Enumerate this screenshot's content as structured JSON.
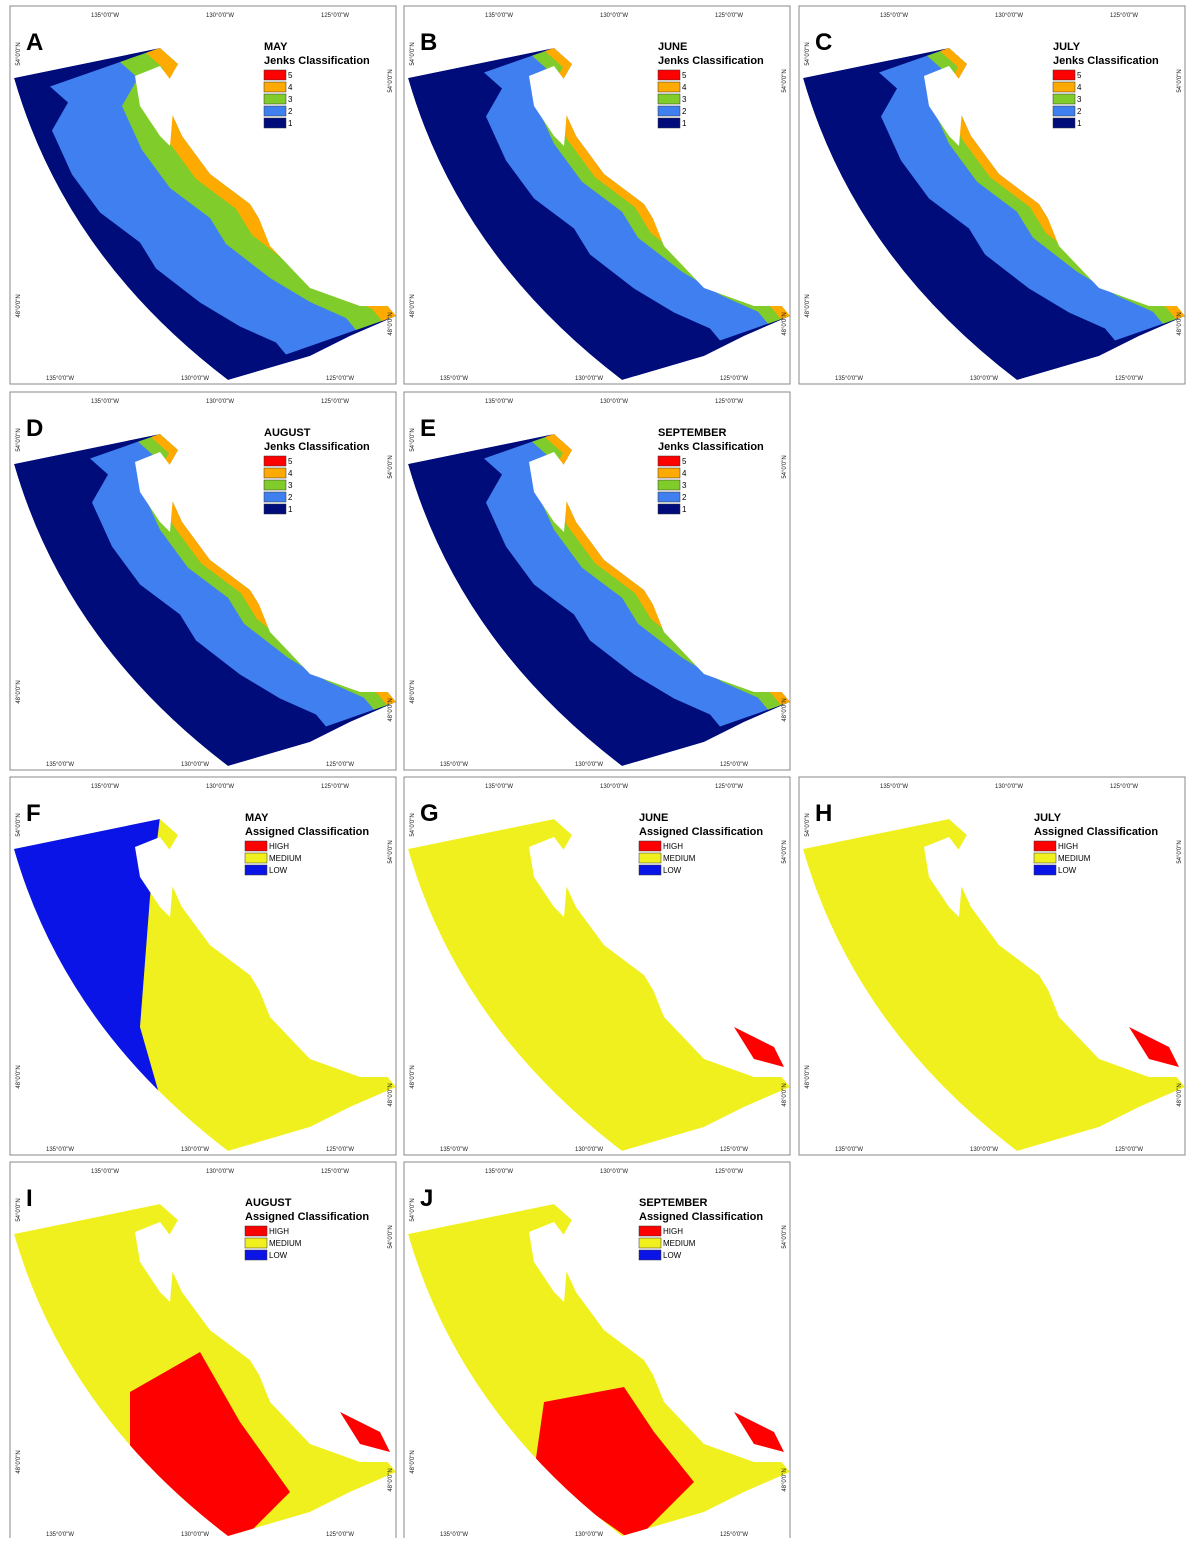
{
  "axis_labels": {
    "lon": [
      "135°0'0\"W",
      "130°0'0\"W",
      "125°0'0\"W"
    ],
    "lat": [
      "54°0'0\"N",
      "48°0'0\"N"
    ]
  },
  "panels": [
    {
      "letter": "A",
      "month": "MAY",
      "classification": "Jenks Classification",
      "legend": [
        {
          "label": "5",
          "color": "#ff0000"
        },
        {
          "label": "4",
          "color": "#ffaa00"
        },
        {
          "label": "3",
          "color": "#7fcc2a"
        },
        {
          "label": "2",
          "color": "#3f7fef"
        },
        {
          "label": "1",
          "color": "#000c7a"
        }
      ]
    },
    {
      "letter": "B",
      "month": "JUNE",
      "classification": "Jenks Classification",
      "legend": [
        {
          "label": "5",
          "color": "#ff0000"
        },
        {
          "label": "4",
          "color": "#ffaa00"
        },
        {
          "label": "3",
          "color": "#7fcc2a"
        },
        {
          "label": "2",
          "color": "#3f7fef"
        },
        {
          "label": "1",
          "color": "#000c7a"
        }
      ]
    },
    {
      "letter": "C",
      "month": "JULY",
      "classification": "Jenks Classification",
      "legend": [
        {
          "label": "5",
          "color": "#ff0000"
        },
        {
          "label": "4",
          "color": "#ffaa00"
        },
        {
          "label": "3",
          "color": "#7fcc2a"
        },
        {
          "label": "2",
          "color": "#3f7fef"
        },
        {
          "label": "1",
          "color": "#000c7a"
        }
      ]
    },
    {
      "letter": "D",
      "month": "AUGUST",
      "classification": "Jenks Classification",
      "legend": [
        {
          "label": "5",
          "color": "#ff0000"
        },
        {
          "label": "4",
          "color": "#ffaa00"
        },
        {
          "label": "3",
          "color": "#7fcc2a"
        },
        {
          "label": "2",
          "color": "#3f7fef"
        },
        {
          "label": "1",
          "color": "#000c7a"
        }
      ]
    },
    {
      "letter": "E",
      "month": "SEPTEMBER",
      "classification": "Jenks Classification",
      "legend": [
        {
          "label": "5",
          "color": "#ff0000"
        },
        {
          "label": "4",
          "color": "#ffaa00"
        },
        {
          "label": "3",
          "color": "#7fcc2a"
        },
        {
          "label": "2",
          "color": "#3f7fef"
        },
        {
          "label": "1",
          "color": "#000c7a"
        }
      ]
    },
    {
      "letter": "F",
      "month": "MAY",
      "classification": "Assigned Classification",
      "legend": [
        {
          "label": "HIGH",
          "color": "#ff0000"
        },
        {
          "label": "MEDIUM",
          "color": "#f0f01e"
        },
        {
          "label": "LOW",
          "color": "#0a14e6"
        }
      ]
    },
    {
      "letter": "G",
      "month": "JUNE",
      "classification": "Assigned Classification",
      "legend": [
        {
          "label": "HIGH",
          "color": "#ff0000"
        },
        {
          "label": "MEDIUM",
          "color": "#f0f01e"
        },
        {
          "label": "LOW",
          "color": "#0a14e6"
        }
      ]
    },
    {
      "letter": "H",
      "month": "JULY",
      "classification": "Assigned Classification",
      "legend": [
        {
          "label": "HIGH",
          "color": "#ff0000"
        },
        {
          "label": "MEDIUM",
          "color": "#f0f01e"
        },
        {
          "label": "LOW",
          "color": "#0a14e6"
        }
      ]
    },
    {
      "letter": "I",
      "month": "AUGUST",
      "classification": "Assigned Classification",
      "legend": [
        {
          "label": "HIGH",
          "color": "#ff0000"
        },
        {
          "label": "MEDIUM",
          "color": "#f0f01e"
        },
        {
          "label": "LOW",
          "color": "#0a14e6"
        }
      ]
    },
    {
      "letter": "J",
      "month": "SEPTEMBER",
      "classification": "Assigned Classification",
      "legend": [
        {
          "label": "HIGH",
          "color": "#ff0000"
        },
        {
          "label": "MEDIUM",
          "color": "#f0f01e"
        },
        {
          "label": "LOW",
          "color": "#0a14e6"
        }
      ]
    }
  ]
}
